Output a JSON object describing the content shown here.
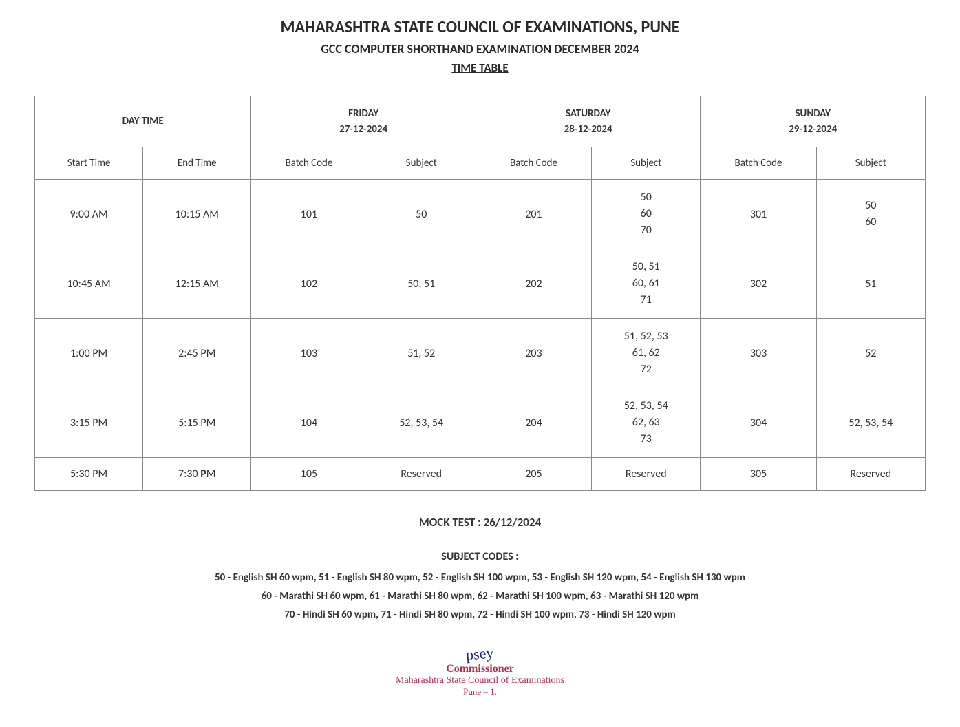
{
  "header": {
    "title_main": "MAHARASHTRA STATE COUNCIL OF EXAMINATIONS, PUNE",
    "title_sub": "GCC COMPUTER SHORTHAND EXAMINATION DECEMBER  2024",
    "title_section": "TIME TABLE"
  },
  "table": {
    "day_time_label": "DAY TIME",
    "days": [
      {
        "name": "FRIDAY",
        "date": "27-12-2024"
      },
      {
        "name": "SATURDAY",
        "date": "28-12-2024"
      },
      {
        "name": "SUNDAY",
        "date": "29-12-2024"
      }
    ],
    "sub_headers": {
      "start_time": "Start Time",
      "end_time": "End Time",
      "batch_code": "Batch Code",
      "subject": "Subject"
    },
    "rows": [
      {
        "start": "9:00 AM",
        "end": "10:15 AM",
        "fri_batch": "101",
        "fri_subject": "50",
        "sat_batch": "201",
        "sat_subject": "50\n60\n70",
        "sun_batch": "301",
        "sun_subject": "50\n60"
      },
      {
        "start": "10:45 AM",
        "end": "12:15 AM",
        "fri_batch": "102",
        "fri_subject": "50, 51",
        "sat_batch": "202",
        "sat_subject": "50, 51\n60, 61\n71",
        "sun_batch": "302",
        "sun_subject": "51"
      },
      {
        "start": "1:00 PM",
        "end": "2:45 PM",
        "fri_batch": "103",
        "fri_subject": "51, 52",
        "sat_batch": "203",
        "sat_subject": "51, 52, 53\n61, 62\n72",
        "sun_batch": "303",
        "sun_subject": "52"
      },
      {
        "start": "3:15 PM",
        "end": "5:15 PM",
        "fri_batch": "104",
        "fri_subject": "52, 53, 54",
        "sat_batch": "204",
        "sat_subject": "52, 53, 54\n62, 63\n73",
        "sun_batch": "304",
        "sun_subject": "52, 53, 54"
      },
      {
        "start": "5:30 PM",
        "end": "7:30 PM",
        "fri_batch": "105",
        "fri_subject": "Reserved",
        "sat_batch": "205",
        "sat_subject": "Reserved",
        "sun_batch": "305",
        "sun_subject": "Reserved"
      }
    ]
  },
  "mock_test": "MOCK TEST : 26/12/2024",
  "subject_codes": {
    "header": "SUBJECT CODES :",
    "line1": "50 - English SH 60 wpm, 51 - English SH 80 wpm, 52 - English SH 100 wpm, 53 - English SH 120 wpm, 54 - English SH 130 wpm",
    "line2": "60 - Marathi SH 60 wpm, 61 - Marathi SH 80 wpm, 62 - Marathi SH 100 wpm, 63 - Marathi SH 120 wpm",
    "line3": "70 - Hindi SH 60 wpm, 71 - Hindi SH 80 wpm, 72 - Hindi SH 100 wpm, 73 - Hindi SH 120 wpm"
  },
  "signature": {
    "scribble": "psey",
    "commissioner": "Commissioner",
    "org": "Maharashtra State Council of Examinations",
    "place": "Pune – 1."
  },
  "style": {
    "background_color": "#ffffff",
    "text_color": "#333333",
    "border_color": "#888888",
    "stamp_color": "#b03050",
    "title_fontsize": 24,
    "subtitle_fontsize": 18,
    "cell_fontsize": 16
  }
}
